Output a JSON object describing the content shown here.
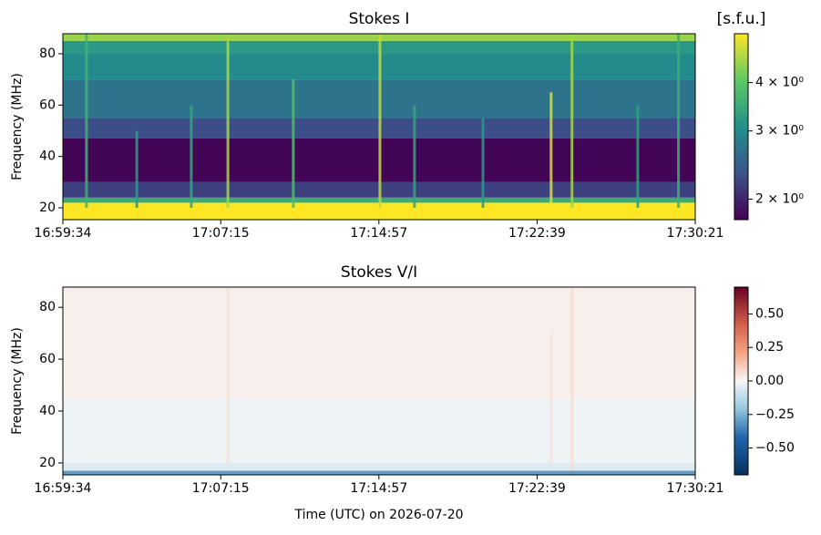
{
  "chart_data": [
    {
      "type": "heatmap",
      "title": "Stokes I",
      "y_label": "Frequency (MHz)",
      "xlim": [
        61174,
        63021
      ],
      "xticks": [
        {
          "value": 61174,
          "label": "16:59:34"
        },
        {
          "value": 61635,
          "label": "17:07:15"
        },
        {
          "value": 62097,
          "label": "17:14:57"
        },
        {
          "value": 62559,
          "label": "17:22:39"
        },
        {
          "value": 63021,
          "label": "17:30:21"
        }
      ],
      "ylim": [
        15.4,
        87.8
      ],
      "yticks": [
        20,
        40,
        60,
        80
      ],
      "rows": {
        "y_edges": [
          15.4,
          22,
          24,
          30,
          47,
          55,
          70,
          80,
          85,
          87.8
        ],
        "values": [
          5.35,
          3.5,
          2.2,
          1.8,
          2.3,
          2.7,
          3.0,
          3.2,
          4.5
        ]
      },
      "bursts": [
        {
          "t": 61243,
          "f": [
            20,
            88
          ],
          "value": 3.6
        },
        {
          "t": 61390,
          "f": [
            20,
            50
          ],
          "value": 3.2
        },
        {
          "t": 61549,
          "f": [
            20,
            60
          ],
          "value": 3.4
        },
        {
          "t": 61656,
          "f": [
            20,
            88
          ],
          "value": 4.6
        },
        {
          "t": 61847,
          "f": [
            20,
            70
          ],
          "value": 3.8
        },
        {
          "t": 62100,
          "f": [
            20,
            88
          ],
          "value": 4.8
        },
        {
          "t": 62201,
          "f": [
            20,
            60
          ],
          "value": 3.4
        },
        {
          "t": 62401,
          "f": [
            20,
            55
          ],
          "value": 3.2
        },
        {
          "t": 62600,
          "f": [
            22,
            65
          ],
          "value": 5.0
        },
        {
          "t": 62661,
          "f": [
            20,
            88
          ],
          "value": 4.6
        },
        {
          "t": 62853,
          "f": [
            20,
            60
          ],
          "value": 3.3
        },
        {
          "t": 62972,
          "f": [
            20,
            88
          ],
          "value": 3.5
        }
      ],
      "colorbar": {
        "label": "[s.f.u.]",
        "scale": "log",
        "colormap": "viridis",
        "lim": [
          1.77,
          5.35
        ],
        "ticks": [
          {
            "value": 2,
            "label": "2 × 10⁰"
          },
          {
            "value": 3,
            "label": "3 × 10⁰"
          },
          {
            "value": 4,
            "label": "4 × 10⁰"
          }
        ]
      }
    },
    {
      "type": "heatmap",
      "title": "Stokes V/I",
      "x_label": "Time (UTC) on 2026-07-20",
      "y_label": "Frequency (MHz)",
      "xlim": [
        61174,
        63021
      ],
      "xticks": [
        {
          "value": 61174,
          "label": "16:59:34"
        },
        {
          "value": 61635,
          "label": "17:07:15"
        },
        {
          "value": 62097,
          "label": "17:14:57"
        },
        {
          "value": 62559,
          "label": "17:22:39"
        },
        {
          "value": 63021,
          "label": "17:30:21"
        }
      ],
      "ylim": [
        15.4,
        87.8
      ],
      "yticks": [
        20,
        40,
        60,
        80
      ],
      "rows": {
        "y_edges": [
          15.4,
          17,
          20,
          45,
          87.8
        ],
        "values": [
          -0.3,
          -0.05,
          -0.02,
          0.02
        ]
      },
      "bursts": [
        {
          "t": 61656,
          "f": [
            20,
            88
          ],
          "value": 0.06
        },
        {
          "t": 62600,
          "f": [
            20,
            70
          ],
          "value": 0.05
        },
        {
          "t": 62661,
          "f": [
            17,
            88
          ],
          "value": 0.07
        }
      ],
      "colorbar": {
        "scale": "linear",
        "colormap": "RdBu_r",
        "lim": [
          -0.7,
          0.7
        ],
        "ticks": [
          {
            "value": -0.5,
            "label": "−0.50"
          },
          {
            "value": -0.25,
            "label": "−0.25"
          },
          {
            "value": 0,
            "label": "0.00"
          },
          0.25,
          {
            "value": 0.5,
            "label": "0.50"
          }
        ]
      }
    }
  ]
}
